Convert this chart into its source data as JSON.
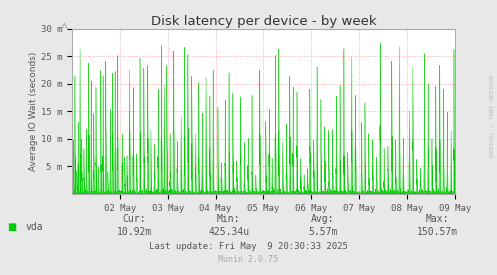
{
  "title": "Disk latency per device - by week",
  "ylabel": "Average IO Wait (seconds)",
  "bg_color": "#e8e8e8",
  "plot_bg_color": "#ffffff",
  "line_color": "#00cc00",
  "fill_color": "#00cc00",
  "grid_color": "#ff9999",
  "grid_linestyle": ":",
  "ylim": [
    0,
    30
  ],
  "yticks": [
    5,
    10,
    15,
    20,
    25,
    30
  ],
  "ytick_labels": [
    "5 m",
    "10 m",
    "15 m",
    "20 m",
    "25 m",
    "30 m"
  ],
  "xtick_labels": [
    "02 May",
    "03 May",
    "04 May",
    "05 May",
    "06 May",
    "07 May",
    "08 May",
    "09 May"
  ],
  "legend_label": "vda",
  "legend_color": "#00cc00",
  "cur_label": "Cur:",
  "cur_value": "10.92m",
  "min_label": "Min:",
  "min_value": "425.34u",
  "avg_label": "Avg:",
  "avg_value": "5.57m",
  "max_label": "Max:",
  "max_value": "150.57m",
  "last_update": "Last update: Fri May  9 20:30:33 2025",
  "munin_label": "Munin 2.0.75",
  "rrdtool_label": "RRDTOOL / TOBI OETIKER",
  "title_color": "#333333",
  "text_color": "#555555",
  "axis_color": "#aaaaaa",
  "n_points": 2000,
  "seed": 42
}
